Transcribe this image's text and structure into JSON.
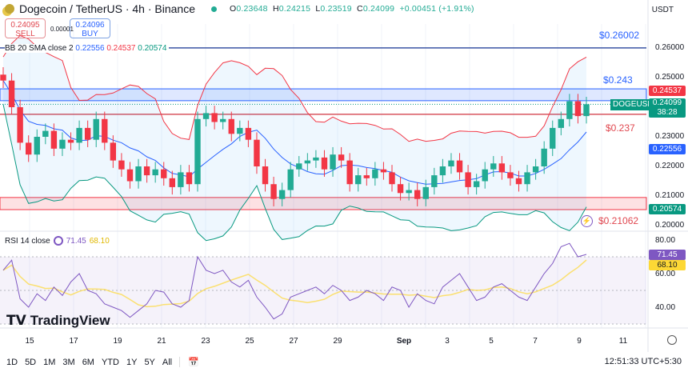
{
  "header": {
    "symbol": "Dogecoin / TetherUS · 4h · Binance",
    "o_label": "O",
    "o": "0.23648",
    "h_label": "H",
    "h": "0.24215",
    "l_label": "L",
    "l": "0.23519",
    "c_label": "C",
    "c": "0.24099",
    "change": "+0.00451 (+1.91%)",
    "currency": "USDT"
  },
  "trade": {
    "sell_price": "0.24095",
    "sell_label": "SELL",
    "spread": "0.00001",
    "buy_price": "0.24096",
    "buy_label": "BUY"
  },
  "bb": {
    "label": "BB 20 SMA close 2",
    "basis": "0.22556",
    "upper": "0.24537",
    "lower": "0.20574"
  },
  "rsi": {
    "label": "RSI 14 close",
    "value": "71.45",
    "ma": "68.10"
  },
  "levels": {
    "l1": "$0.26002",
    "l2": "$0.243",
    "l3": "$0.237",
    "l4": "$0.21062"
  },
  "price_axis": [
    "0.26000",
    "0.25000",
    "0.23000",
    "0.22000",
    "0.21000",
    "0.20000"
  ],
  "price_tags": {
    "upper": "0.24537",
    "symbol": "DOGEUSDT",
    "last": "0.24099",
    "countdown": "38:28",
    "basis": "0.22556",
    "lower": "0.20574"
  },
  "rsi_axis": [
    "80.00",
    "60.00",
    "40.00"
  ],
  "x_axis": [
    "15",
    "17",
    "19",
    "21",
    "23",
    "25",
    "27",
    "29",
    "Sep",
    "3",
    "5",
    "7",
    "9",
    "11"
  ],
  "ranges": [
    "1D",
    "5D",
    "1M",
    "3M",
    "6M",
    "YTD",
    "1Y",
    "5Y",
    "All"
  ],
  "clock": "12:51:33 UTC+5:30",
  "logo": "TradingView",
  "colors": {
    "up": "#22ab94",
    "down": "#f23645",
    "basis": "#2962ff",
    "upper": "#f23645",
    "lower": "#089981",
    "rsi": "#7e57c2",
    "rsi_ma": "#fdd835"
  },
  "chart_data": {
    "type": "candlestick",
    "title": "Dogecoin / TetherUS · 4h · Binance",
    "ylim": [
      0.2,
      0.265
    ],
    "x_start": "Aug 14",
    "x_end": "Sep 9",
    "close": [
      0.249,
      0.24,
      0.228,
      0.224,
      0.23,
      0.232,
      0.226,
      0.229,
      0.228,
      0.233,
      0.229,
      0.236,
      0.228,
      0.222,
      0.219,
      0.215,
      0.22,
      0.217,
      0.219,
      0.216,
      0.213,
      0.218,
      0.214,
      0.236,
      0.238,
      0.235,
      0.236,
      0.231,
      0.233,
      0.229,
      0.22,
      0.214,
      0.209,
      0.212,
      0.219,
      0.221,
      0.222,
      0.223,
      0.219,
      0.224,
      0.222,
      0.214,
      0.217,
      0.216,
      0.219,
      0.218,
      0.214,
      0.211,
      0.212,
      0.209,
      0.213,
      0.217,
      0.22,
      0.222,
      0.218,
      0.213,
      0.215,
      0.219,
      0.221,
      0.218,
      0.216,
      0.214,
      0.218,
      0.22,
      0.226,
      0.233,
      0.236,
      0.242,
      0.237,
      0.241
    ],
    "rsi": [
      62,
      68,
      45,
      40,
      48,
      44,
      52,
      47,
      55,
      60,
      50,
      48,
      42,
      40,
      38,
      34,
      38,
      42,
      50,
      49,
      42,
      40,
      44,
      70,
      62,
      60,
      62,
      55,
      52,
      56,
      46,
      40,
      33,
      36,
      46,
      48,
      50,
      52,
      48,
      53,
      50,
      44,
      46,
      50,
      48,
      44,
      52,
      50,
      40,
      48,
      44,
      42,
      52,
      56,
      60,
      52,
      44,
      46,
      52,
      54,
      50,
      46,
      44,
      52,
      60,
      66,
      76,
      78,
      70,
      71.45
    ],
    "rsi_ma_last": 68.1,
    "hlines": [
      {
        "label": "$0.26002",
        "value": 0.26002
      },
      {
        "label": "$0.243",
        "zone": [
          0.2422,
          0.2462
        ]
      },
      {
        "label": "$0.237",
        "value": 0.2376
      },
      {
        "label": "$0.21062",
        "zone": [
          0.2054,
          0.2095
        ]
      }
    ]
  }
}
